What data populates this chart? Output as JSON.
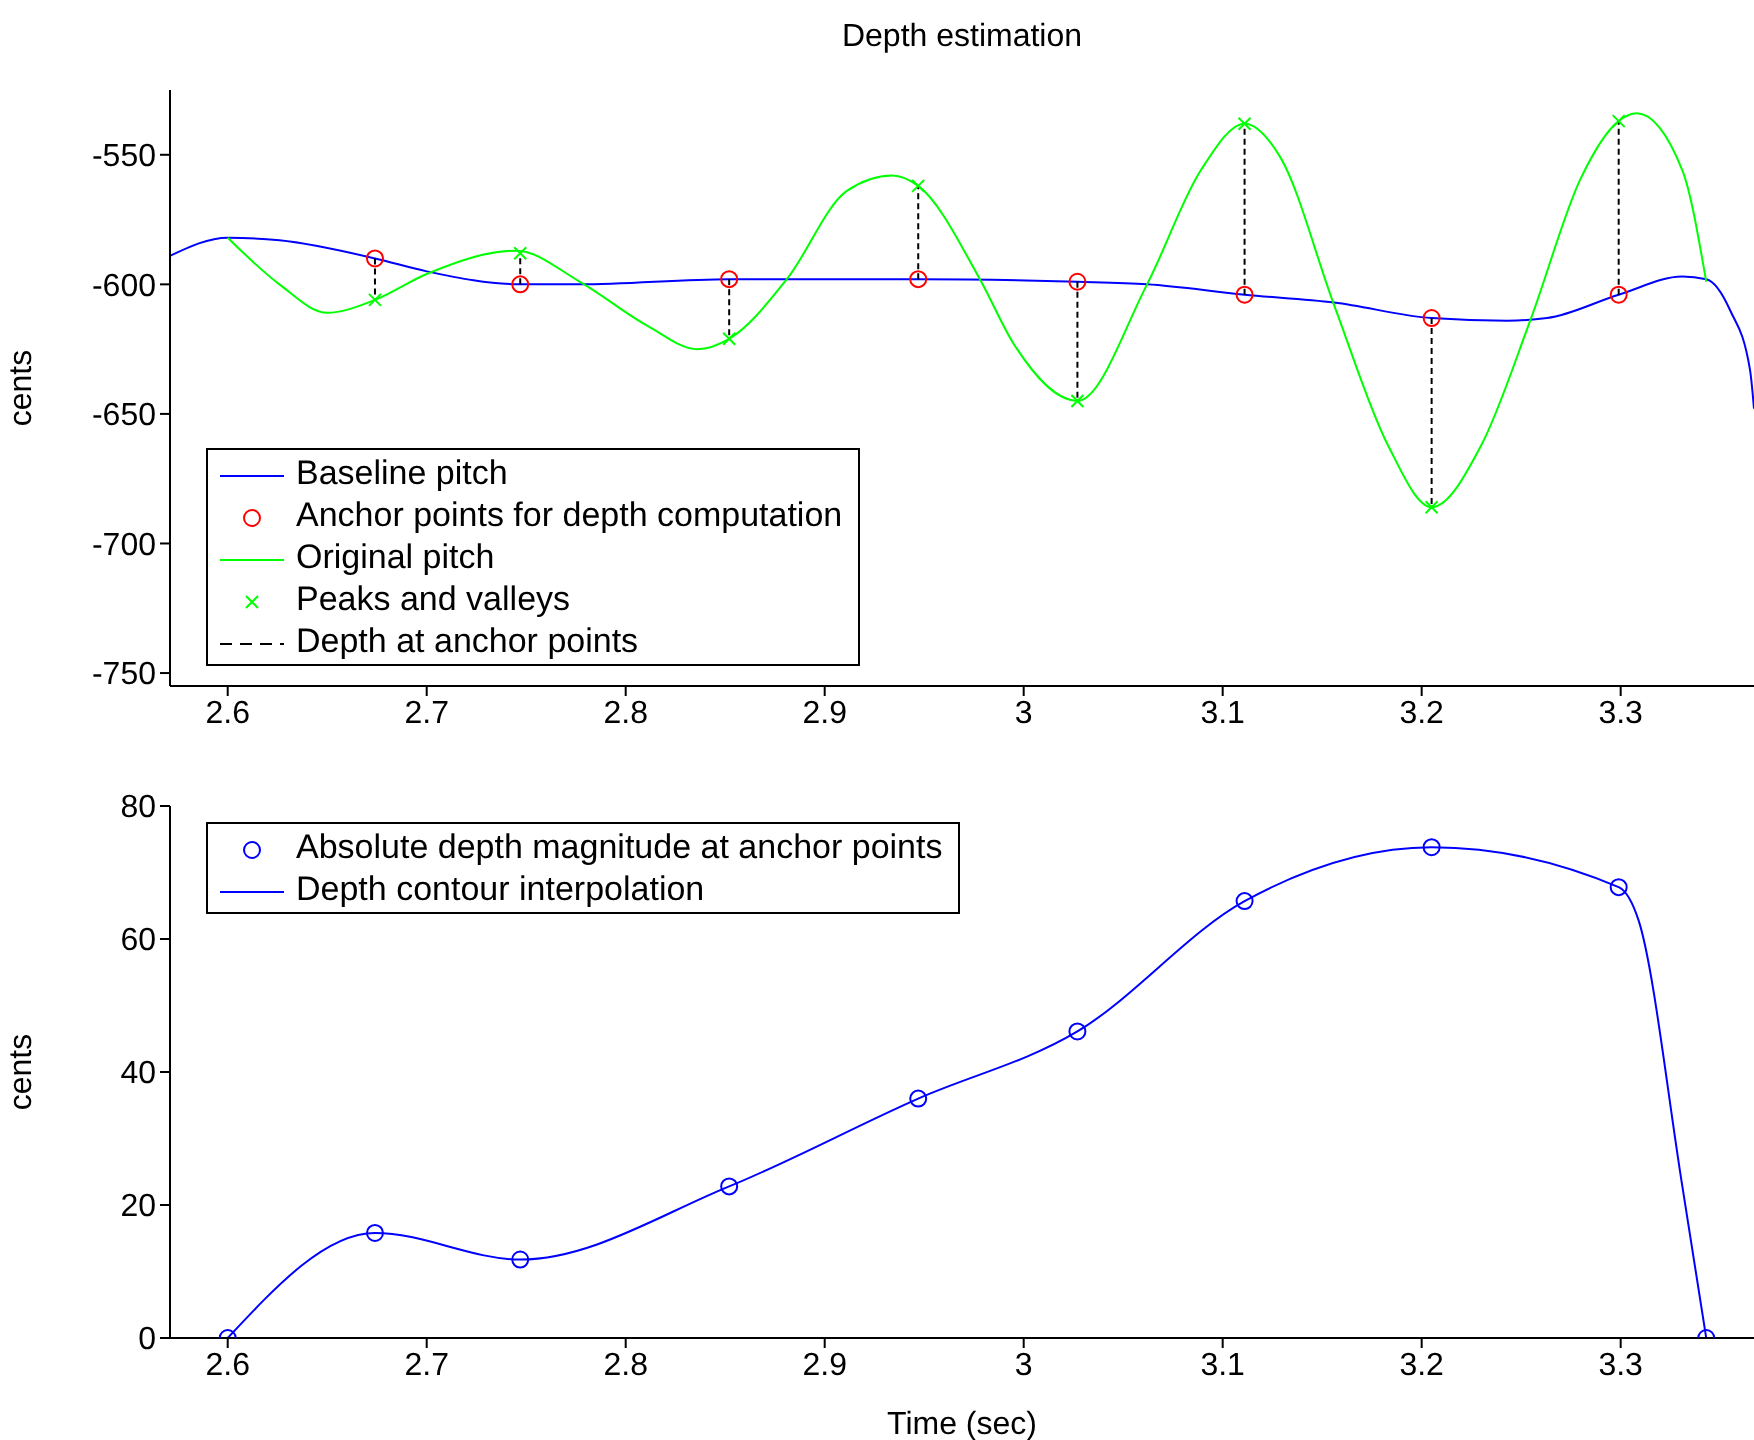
{
  "chart_data": [
    {
      "type": "line",
      "title": "Depth estimation",
      "ylabel": "cents",
      "xlim": [
        2.571,
        3.367
      ],
      "xticks": [
        2.6,
        2.7,
        2.8,
        2.9,
        3,
        3.1,
        3.2,
        3.3
      ],
      "ylim": [
        -755,
        -525
      ],
      "yticks": [
        -750,
        -700,
        -650,
        -600,
        -550
      ],
      "grid": false,
      "legend": "bottom left",
      "series": [
        {
          "name": "Baseline pitch",
          "color": "#0000ff",
          "marker": "none",
          "line_style": "solid",
          "x": [
            2.571,
            2.6,
            2.626,
            2.674,
            2.7,
            2.747,
            2.777,
            2.852,
            2.947,
            3.027,
            3.062,
            3.111,
            3.156,
            3.205,
            3.243,
            3.263,
            3.299,
            3.331,
            3.343,
            3.355,
            3.365,
            3.367
          ],
          "values": [
            -589,
            -582,
            -583,
            -590,
            -595,
            -600,
            -600,
            -598,
            -598,
            -599,
            -600,
            -604,
            -607,
            -613,
            -614,
            -613,
            -604,
            -597,
            -598,
            -610,
            -633,
            -648
          ]
        },
        {
          "name": "Anchor points for depth computation",
          "type": "scatter",
          "color": "#ff0000",
          "marker": "circle",
          "x": [
            2.674,
            2.747,
            2.852,
            2.947,
            3.027,
            3.111,
            3.205,
            3.299
          ],
          "values": [
            -590,
            -600,
            -598,
            -598,
            -599,
            -604,
            -613,
            -604
          ]
        },
        {
          "name": "Original pitch",
          "color": "#00ff00",
          "marker": "none",
          "line_style": "solid",
          "x": [
            2.6,
            2.626,
            2.65,
            2.674,
            2.7,
            2.745,
            2.777,
            2.811,
            2.836,
            2.852,
            2.881,
            2.911,
            2.934,
            2.947,
            2.978,
            2.995,
            3.027,
            3.062,
            3.089,
            3.111,
            3.129,
            3.156,
            3.183,
            3.205,
            3.23,
            3.255,
            3.28,
            3.299,
            3.308,
            3.331,
            3.343
          ],
          "values": [
            -582,
            -600,
            -611,
            -606,
            -596,
            -587,
            -599,
            -616,
            -625,
            -621,
            -598,
            -564,
            -558,
            -562,
            -598,
            -623,
            -645,
            -600,
            -556,
            -538,
            -551,
            -608,
            -662,
            -686,
            -662,
            -613,
            -559,
            -537,
            -534,
            -556,
            -599
          ]
        },
        {
          "name": "Peaks and valleys",
          "type": "scatter",
          "color": "#00ff00",
          "marker": "cross",
          "x": [
            2.674,
            2.747,
            2.852,
            2.947,
            3.027,
            3.111,
            3.205,
            3.299
          ],
          "values": [
            -606,
            -588,
            -621,
            -562,
            -645,
            -538,
            -686,
            -537
          ]
        },
        {
          "name": "Depth at anchor points",
          "color": "#000000",
          "marker": "none",
          "line_style": "dashed",
          "x": [
            2.674,
            2.674
          ],
          "values": [
            -590,
            -606
          ]
        },
        {
          "color": "#000000",
          "marker": "none",
          "line_style": "dashed",
          "x": [
            2.747,
            2.747
          ],
          "values": [
            -600,
            -588
          ]
        },
        {
          "color": "#000000",
          "marker": "none",
          "line_style": "dashed",
          "x": [
            2.852,
            2.852
          ],
          "values": [
            -598,
            -621
          ]
        },
        {
          "color": "#000000",
          "marker": "none",
          "line_style": "dashed",
          "x": [
            2.947,
            2.947
          ],
          "values": [
            -598,
            -562
          ]
        },
        {
          "color": "#000000",
          "marker": "none",
          "line_style": "dashed",
          "x": [
            3.027,
            3.027
          ],
          "values": [
            -599,
            -645
          ]
        },
        {
          "color": "#000000",
          "marker": "none",
          "line_style": "dashed",
          "x": [
            3.111,
            3.111
          ],
          "values": [
            -604,
            -538
          ]
        },
        {
          "color": "#000000",
          "marker": "none",
          "line_style": "dashed",
          "x": [
            3.205,
            3.205
          ],
          "values": [
            -613,
            -686
          ]
        },
        {
          "color": "#000000",
          "marker": "none",
          "line_style": "dashed",
          "x": [
            3.299,
            3.299
          ],
          "values": [
            -604,
            -537
          ]
        }
      ]
    },
    {
      "type": "line",
      "xlabel": "Time (sec)",
      "ylabel": "cents",
      "xlim": [
        2.571,
        3.367
      ],
      "xticks": [
        2.6,
        2.7,
        2.8,
        2.9,
        3,
        3.1,
        3.2,
        3.3
      ],
      "ylim": [
        0,
        80
      ],
      "yticks": [
        0,
        20,
        40,
        60,
        80
      ],
      "grid": false,
      "legend": "top left",
      "series": [
        {
          "name": "Absolute depth magnitude at anchor points",
          "type": "scatter",
          "color": "#0000ff",
          "marker": "circle",
          "x": [
            2.6,
            2.674,
            2.747,
            2.852,
            2.947,
            3.027,
            3.111,
            3.205,
            3.299,
            3.343
          ],
          "values": [
            0,
            15.8,
            11.8,
            22.8,
            36,
            46.1,
            65.7,
            73.8,
            67.8,
            0
          ]
        },
        {
          "name": "Depth contour interpolation",
          "color": "#0000ff",
          "marker": "none",
          "line_style": "solid",
          "x": [
            2.6,
            2.674,
            2.747,
            2.852,
            2.947,
            3.027,
            3.111,
            3.205,
            3.299,
            3.309,
            3.331,
            3.343
          ],
          "values": [
            0,
            15.8,
            11.8,
            22.8,
            36,
            46.1,
            65.7,
            73.8,
            67.8,
            62.8,
            22.8,
            0
          ]
        }
      ]
    }
  ]
}
